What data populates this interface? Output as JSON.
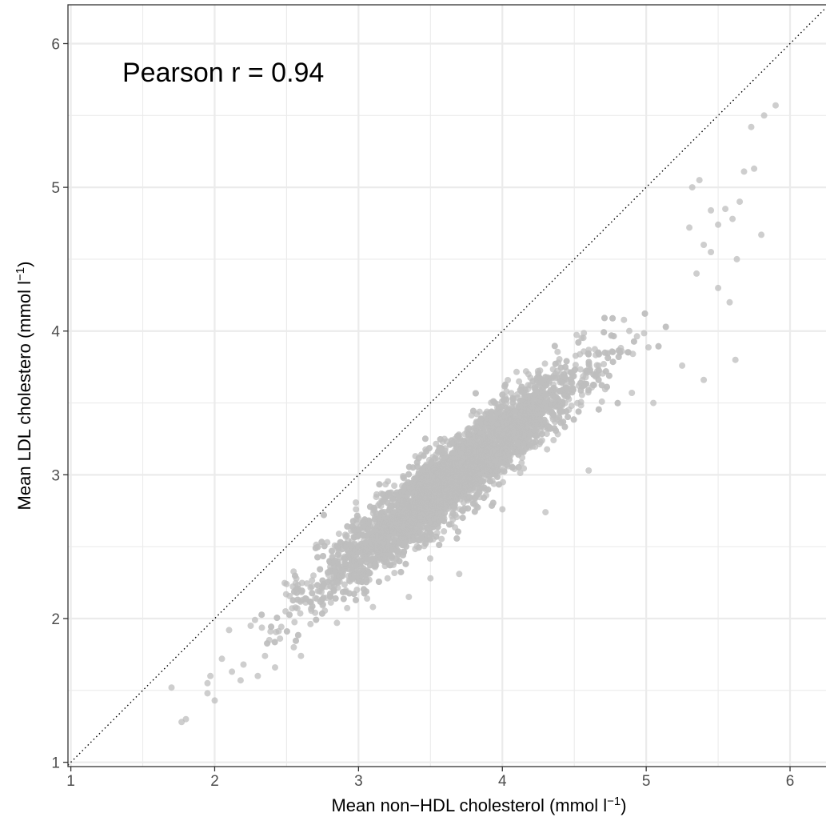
{
  "chart_data": {
    "type": "scatter",
    "xlabel": {
      "text": "Mean non−HDL cholesterol (mmol l",
      "sup": "−1",
      "close": ")"
    },
    "ylabel": {
      "text": "Mean LDL cholestero (mmol l",
      "sup": "−1",
      "close": ")"
    },
    "xlim": [
      0.98,
      6.25
    ],
    "ylim": [
      0.97,
      6.27
    ],
    "x_ticks": [
      1,
      2,
      3,
      4,
      5,
      6
    ],
    "x_tick_labels": [
      "1",
      "2",
      "3",
      "4",
      "5",
      "6"
    ],
    "y_ticks": [
      1,
      2,
      3,
      4,
      5,
      6
    ],
    "y_tick_labels": [
      "1",
      "2",
      "3",
      "4",
      "5",
      "6"
    ],
    "x_minor_grid": [
      1.5,
      2.5,
      3.5,
      4.5,
      5.5
    ],
    "y_minor_grid": [
      1.5,
      2.5,
      3.5,
      4.5,
      5.5
    ],
    "grid": true,
    "identity_line": {
      "style": "dotted",
      "from": [
        0.98,
        0.98
      ],
      "to": [
        6.25,
        6.25
      ]
    },
    "annotation": "Pearson r = 0.94",
    "point_color": "#bdbdbd",
    "grid_color": "#ebebeb",
    "series": [
      {
        "trend": {
          "slope": 0.8,
          "intercept": 0.05
        },
        "x_range": [
          2.3,
          5.3
        ],
        "x_center": 3.65,
        "x_sd": 0.45,
        "residual_sd": 0.13,
        "count": 5000,
        "outliers": [
          [
            1.7,
            1.52
          ],
          [
            1.77,
            1.28
          ],
          [
            1.8,
            1.3
          ],
          [
            1.95,
            1.48
          ],
          [
            1.95,
            1.55
          ],
          [
            1.97,
            1.6
          ],
          [
            2.0,
            1.43
          ],
          [
            2.05,
            1.72
          ],
          [
            2.12,
            1.63
          ],
          [
            2.1,
            1.92
          ],
          [
            2.18,
            1.57
          ],
          [
            2.2,
            1.68
          ],
          [
            2.25,
            1.95
          ],
          [
            2.28,
            1.99
          ],
          [
            2.3,
            1.6
          ],
          [
            2.35,
            1.74
          ],
          [
            2.38,
            1.85
          ],
          [
            2.42,
            1.66
          ],
          [
            2.5,
            2.24
          ],
          [
            2.55,
            1.8
          ],
          [
            2.6,
            1.74
          ],
          [
            3.35,
            2.15
          ],
          [
            3.1,
            2.08
          ],
          [
            2.85,
            1.97
          ],
          [
            3.5,
            2.28
          ],
          [
            3.7,
            2.31
          ],
          [
            4.0,
            2.76
          ],
          [
            4.3,
            2.74
          ],
          [
            4.6,
            3.03
          ],
          [
            4.9,
            3.57
          ],
          [
            5.05,
            3.5
          ],
          [
            5.25,
            3.76
          ],
          [
            5.4,
            3.66
          ],
          [
            5.62,
            3.8
          ],
          [
            5.3,
            4.72
          ],
          [
            5.32,
            5.0
          ],
          [
            5.37,
            5.05
          ],
          [
            5.45,
            4.84
          ],
          [
            5.5,
            4.74
          ],
          [
            5.55,
            4.85
          ],
          [
            5.6,
            4.78
          ],
          [
            5.63,
            4.5
          ],
          [
            5.65,
            4.9
          ],
          [
            5.68,
            5.11
          ],
          [
            5.73,
            5.42
          ],
          [
            5.75,
            5.13
          ],
          [
            5.8,
            4.67
          ],
          [
            5.82,
            5.5
          ],
          [
            5.9,
            5.57
          ],
          [
            5.35,
            4.4
          ],
          [
            5.4,
            4.6
          ],
          [
            5.45,
            4.55
          ],
          [
            5.5,
            4.3
          ],
          [
            5.58,
            4.2
          ]
        ]
      }
    ]
  }
}
